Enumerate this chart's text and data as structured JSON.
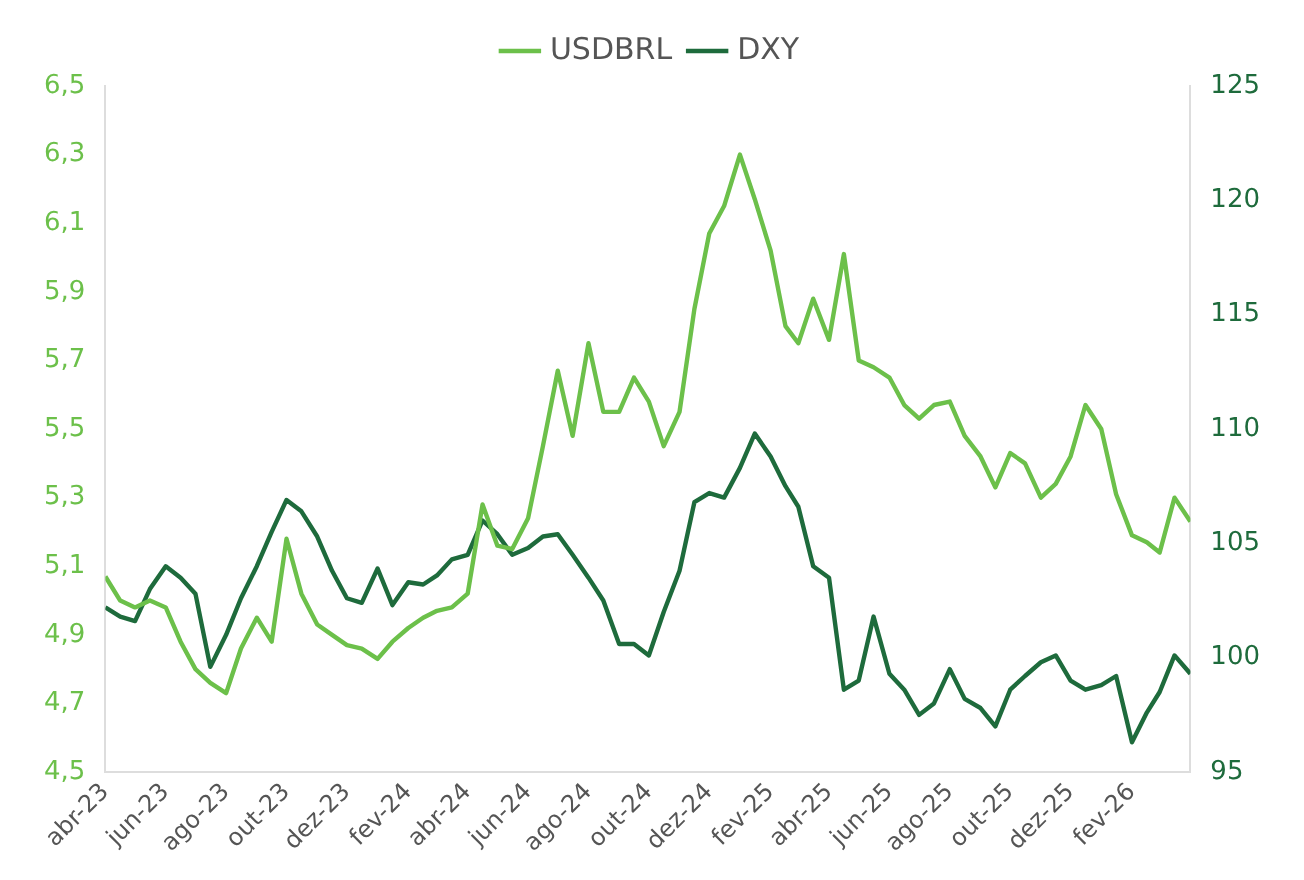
{
  "chart_data": {
    "type": "line",
    "legend": "top",
    "marker": "none",
    "line_style": "solid",
    "grid": false,
    "x": [
      "2023-04-01",
      "2023-04-16",
      "2023-05-01",
      "2023-05-16",
      "2023-06-01",
      "2023-06-16",
      "2023-07-01",
      "2023-07-16",
      "2023-08-01",
      "2023-08-16",
      "2023-09-01",
      "2023-09-16",
      "2023-10-01",
      "2023-10-16",
      "2023-11-01",
      "2023-11-16",
      "2023-12-01",
      "2023-12-16",
      "2024-01-01",
      "2024-01-16",
      "2024-02-01",
      "2024-02-16",
      "2024-03-01",
      "2024-03-16",
      "2024-04-01",
      "2024-04-16",
      "2024-05-01",
      "2024-05-16",
      "2024-06-01",
      "2024-06-16",
      "2024-07-01",
      "2024-07-16",
      "2024-08-01",
      "2024-08-16",
      "2024-09-01",
      "2024-09-16",
      "2024-10-01",
      "2024-10-16",
      "2024-11-01",
      "2024-11-16",
      "2024-12-01",
      "2024-12-16",
      "2025-01-01",
      "2025-01-16",
      "2025-02-01",
      "2025-02-16",
      "2025-03-01",
      "2025-03-16",
      "2025-04-01",
      "2025-04-16",
      "2025-05-01",
      "2025-05-16",
      "2025-06-01",
      "2025-06-16",
      "2025-07-01",
      "2025-07-16",
      "2025-08-01",
      "2025-08-16",
      "2025-09-01",
      "2025-09-16",
      "2025-10-01",
      "2025-10-16",
      "2025-11-01",
      "2025-11-16",
      "2025-12-01",
      "2025-12-16",
      "2026-01-01",
      "2026-01-16",
      "2026-02-01",
      "2026-02-16",
      "2026-03-01",
      "2026-03-16",
      "2026-04-01"
    ],
    "series": [
      {
        "name": "USDBRL",
        "color": "#6cc04a",
        "values": [
          5.07,
          5.0,
          4.98,
          5.0,
          4.98,
          4.88,
          4.8,
          4.76,
          4.73,
          4.86,
          4.95,
          4.88,
          5.18,
          5.02,
          4.93,
          4.9,
          4.87,
          4.86,
          4.83,
          4.88,
          4.92,
          4.95,
          4.97,
          4.98,
          5.02,
          5.28,
          5.16,
          5.15,
          5.24,
          5.45,
          5.67,
          5.48,
          5.75,
          5.55,
          5.55,
          5.65,
          5.58,
          5.45,
          5.55,
          5.85,
          6.07,
          6.15,
          6.3,
          6.17,
          6.02,
          5.8,
          5.75,
          5.88,
          5.76,
          6.01,
          5.7,
          5.68,
          5.65,
          5.57,
          5.53,
          5.57,
          5.58,
          5.48,
          5.42,
          5.33,
          5.43,
          5.4,
          5.3,
          5.34,
          5.42,
          5.57,
          5.5,
          5.31,
          5.19,
          5.17,
          5.14,
          5.3,
          5.23
        ]
      },
      {
        "name": "DXY",
        "color": "#1e6b3c",
        "axis": "y2",
        "values": [
          102.2,
          101.8,
          101.6,
          103.0,
          104.0,
          103.5,
          102.8,
          99.6,
          101.0,
          102.6,
          104.0,
          105.5,
          106.9,
          106.4,
          105.3,
          103.8,
          102.6,
          102.4,
          103.9,
          102.3,
          103.3,
          103.2,
          103.6,
          104.3,
          104.5,
          106.0,
          105.4,
          104.5,
          104.8,
          105.3,
          105.4,
          104.5,
          103.5,
          102.5,
          100.6,
          100.6,
          100.1,
          102.0,
          103.8,
          106.8,
          107.2,
          107.0,
          108.3,
          109.8,
          108.8,
          107.5,
          106.6,
          104.0,
          103.5,
          98.6,
          99.0,
          101.8,
          99.3,
          98.6,
          97.5,
          98.0,
          99.5,
          98.2,
          97.8,
          97.0,
          98.6,
          99.2,
          99.8,
          100.1,
          99.0,
          98.6,
          98.8,
          99.2,
          96.3,
          97.6,
          98.5,
          100.1,
          99.3
        ]
      }
    ],
    "xlim": [
      "2023-04-01",
      "2026-04-01"
    ],
    "xticks": [
      {
        "value": "2023-04-01",
        "label": "abr-23"
      },
      {
        "value": "2023-06-01",
        "label": "jun-23"
      },
      {
        "value": "2023-08-01",
        "label": "ago-23"
      },
      {
        "value": "2023-10-01",
        "label": "out-23"
      },
      {
        "value": "2023-12-01",
        "label": "dez-23"
      },
      {
        "value": "2024-02-01",
        "label": "fev-24"
      },
      {
        "value": "2024-04-01",
        "label": "abr-24"
      },
      {
        "value": "2024-06-01",
        "label": "jun-24"
      },
      {
        "value": "2024-08-01",
        "label": "ago-24"
      },
      {
        "value": "2024-10-01",
        "label": "out-24"
      },
      {
        "value": "2024-12-01",
        "label": "dez-24"
      },
      {
        "value": "2025-02-01",
        "label": "fev-25"
      },
      {
        "value": "2025-04-01",
        "label": "abr-25"
      },
      {
        "value": "2025-06-01",
        "label": "jun-25"
      },
      {
        "value": "2025-08-01",
        "label": "ago-25"
      },
      {
        "value": "2025-10-01",
        "label": "out-25"
      },
      {
        "value": "2025-12-01",
        "label": "dez-25"
      },
      {
        "value": "2026-02-01",
        "label": "fev-26"
      }
    ],
    "ylim": [
      4.5,
      6.5
    ],
    "yticks": [
      {
        "value": 4.5,
        "label": "4,5"
      },
      {
        "value": 4.7,
        "label": "4,7"
      },
      {
        "value": 4.9,
        "label": "4,9"
      },
      {
        "value": 5.1,
        "label": "5,1"
      },
      {
        "value": 5.3,
        "label": "5,3"
      },
      {
        "value": 5.5,
        "label": "5,5"
      },
      {
        "value": 5.7,
        "label": "5,7"
      },
      {
        "value": 5.9,
        "label": "5,9"
      },
      {
        "value": 6.1,
        "label": "6,1"
      },
      {
        "value": 6.3,
        "label": "6,3"
      },
      {
        "value": 6.5,
        "label": "6,5"
      }
    ],
    "y2lim": [
      95,
      125
    ],
    "y2ticks": [
      95,
      100,
      105,
      110,
      115,
      120,
      125
    ]
  }
}
